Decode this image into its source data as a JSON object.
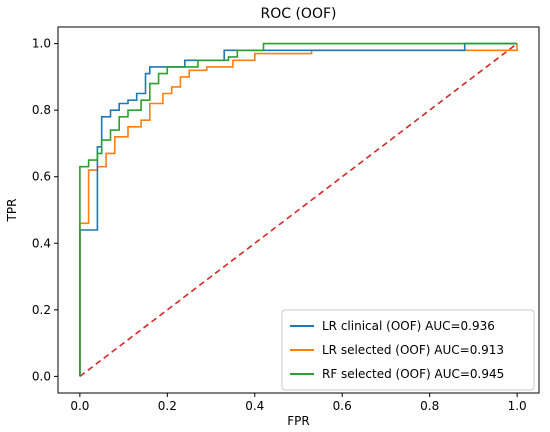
{
  "chart_data": {
    "type": "line",
    "title": "ROC (OOF)",
    "xlabel": "FPR",
    "ylabel": "TPR",
    "xlim": [
      -0.05,
      1.05
    ],
    "ylim": [
      -0.05,
      1.05
    ],
    "xticks": [
      "0.0",
      "0.2",
      "0.4",
      "0.6",
      "0.8",
      "1.0"
    ],
    "yticks": [
      "0.0",
      "0.2",
      "0.4",
      "0.6",
      "0.8",
      "1.0"
    ],
    "grid": false,
    "legend_position": "lower-right",
    "series": [
      {
        "name": "LR clinical (OOF) AUC=0.936",
        "color": "#1f77b4",
        "x": [
          0,
          0,
          0.01,
          0.01,
          0.04,
          0.04,
          0.05,
          0.05,
          0.07,
          0.07,
          0.09,
          0.09,
          0.11,
          0.11,
          0.13,
          0.13,
          0.15,
          0.15,
          0.16,
          0.16,
          0.24,
          0.24,
          0.33,
          0.33,
          0.42,
          0.42,
          0.88,
          0.88,
          1.0
        ],
        "y": [
          0,
          0.44,
          0.44,
          0.44,
          0.44,
          0.69,
          0.69,
          0.78,
          0.78,
          0.8,
          0.8,
          0.82,
          0.82,
          0.83,
          0.83,
          0.85,
          0.85,
          0.91,
          0.91,
          0.93,
          0.93,
          0.95,
          0.95,
          0.98,
          0.98,
          0.98,
          0.98,
          1.0,
          1.0
        ]
      },
      {
        "name": "LR selected (OOF) AUC=0.913",
        "color": "#ff7f0e",
        "x": [
          0,
          0,
          0.02,
          0.02,
          0.04,
          0.04,
          0.06,
          0.06,
          0.08,
          0.08,
          0.11,
          0.11,
          0.14,
          0.14,
          0.16,
          0.16,
          0.19,
          0.19,
          0.21,
          0.21,
          0.23,
          0.23,
          0.25,
          0.25,
          0.29,
          0.29,
          0.35,
          0.35,
          0.4,
          0.4,
          0.53,
          0.53,
          1.0,
          1.0
        ],
        "y": [
          0,
          0.46,
          0.46,
          0.62,
          0.62,
          0.63,
          0.63,
          0.67,
          0.67,
          0.72,
          0.72,
          0.75,
          0.75,
          0.77,
          0.77,
          0.82,
          0.82,
          0.85,
          0.85,
          0.87,
          0.87,
          0.9,
          0.9,
          0.92,
          0.92,
          0.93,
          0.93,
          0.95,
          0.95,
          0.97,
          0.97,
          0.98,
          0.98,
          1.0
        ]
      },
      {
        "name": "RF selected (OOF) AUC=0.945",
        "color": "#2ca02c",
        "x": [
          0,
          0,
          0.02,
          0.02,
          0.04,
          0.04,
          0.05,
          0.05,
          0.07,
          0.07,
          0.09,
          0.09,
          0.11,
          0.11,
          0.14,
          0.14,
          0.16,
          0.16,
          0.18,
          0.18,
          0.2,
          0.2,
          0.27,
          0.27,
          0.34,
          0.34,
          0.36,
          0.36,
          0.42,
          0.42,
          1.0,
          1.0
        ],
        "y": [
          0,
          0.63,
          0.63,
          0.65,
          0.65,
          0.67,
          0.67,
          0.71,
          0.71,
          0.74,
          0.74,
          0.78,
          0.78,
          0.8,
          0.8,
          0.83,
          0.83,
          0.88,
          0.88,
          0.91,
          0.91,
          0.93,
          0.93,
          0.95,
          0.95,
          0.96,
          0.96,
          0.98,
          0.98,
          1.0,
          1.0,
          1.0
        ]
      },
      {
        "name": "",
        "color": "#d62728",
        "style": "dashed",
        "x": [
          0,
          1
        ],
        "y": [
          0,
          1
        ]
      }
    ]
  }
}
